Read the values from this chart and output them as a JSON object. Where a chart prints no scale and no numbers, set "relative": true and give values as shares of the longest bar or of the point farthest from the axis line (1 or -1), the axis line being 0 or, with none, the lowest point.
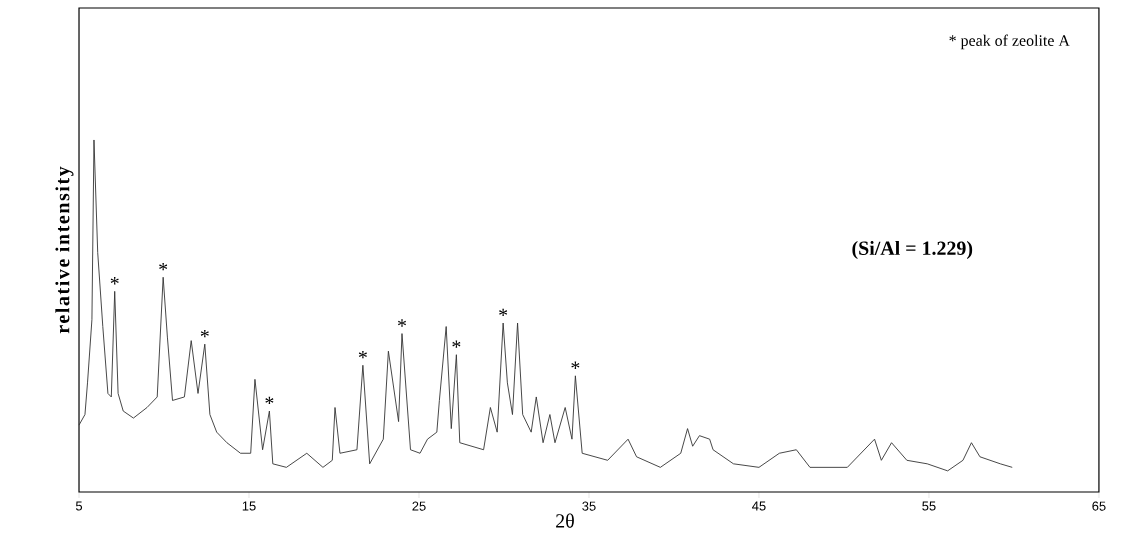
{
  "chart_data": {
    "type": "line",
    "relative": true,
    "xlabel": "2θ",
    "ylabel": "relative intensity",
    "xlim": [
      5,
      65
    ],
    "xticks": [
      5,
      15,
      25,
      35,
      45,
      55,
      65
    ],
    "grid": false,
    "marker": "none",
    "line_style": "solid",
    "annotations": [
      "* peak of zeolite A",
      "**(Si/Al = 1.229)**",
      {
        "text": "*",
        "x": 7.1,
        "y": 0.57
      },
      {
        "text": "*",
        "x": 9.95,
        "y": 0.61
      },
      {
        "text": "*",
        "x": 12.4,
        "y": 0.42
      },
      {
        "text": "*",
        "x": 16.2,
        "y": 0.23
      },
      {
        "text": "*",
        "x": 21.7,
        "y": 0.36
      },
      {
        "text": "*",
        "x": 24.0,
        "y": 0.45
      },
      {
        "text": "*",
        "x": 27.2,
        "y": 0.39
      },
      {
        "text": "*",
        "x": 29.95,
        "y": 0.48
      },
      {
        "text": "*",
        "x": 34.2,
        "y": 0.33
      }
    ],
    "series": [
      {
        "color": "#333333",
        "x": [
          5.0,
          5.35,
          5.5,
          5.76,
          5.88,
          6.1,
          6.4,
          6.7,
          6.9,
          7.1,
          7.3,
          7.6,
          8.2,
          9.0,
          9.6,
          9.95,
          10.2,
          10.5,
          11.2,
          11.6,
          12.0,
          12.4,
          12.7,
          13.1,
          13.7,
          14.5,
          15.1,
          15.35,
          15.8,
          16.2,
          16.4,
          17.2,
          18.4,
          19.35,
          19.9,
          20.06,
          20.35,
          21.35,
          21.7,
          22.1,
          22.9,
          23.2,
          23.8,
          24.0,
          24.5,
          25.06,
          25.5,
          26.05,
          26.2,
          26.6,
          26.9,
          27.2,
          27.4,
          28.8,
          29.2,
          29.6,
          29.95,
          30.2,
          30.5,
          30.8,
          31.1,
          31.6,
          31.9,
          32.3,
          32.7,
          33.0,
          33.6,
          34.0,
          34.2,
          34.6,
          36.1,
          37.3,
          37.8,
          39.2,
          40.4,
          40.8,
          41.1,
          41.5,
          42.1,
          42.3,
          43.5,
          45.0,
          46.2,
          47.2,
          48.0,
          50.2,
          51.8,
          52.2,
          52.8,
          53.7,
          54.9,
          56.1,
          57.0,
          57.5,
          58.0,
          59.2,
          59.9
        ],
        "values": [
          0.19,
          0.22,
          0.31,
          0.49,
          1.0,
          0.68,
          0.47,
          0.28,
          0.27,
          0.57,
          0.28,
          0.23,
          0.21,
          0.24,
          0.27,
          0.61,
          0.44,
          0.26,
          0.27,
          0.43,
          0.28,
          0.42,
          0.22,
          0.17,
          0.14,
          0.11,
          0.11,
          0.32,
          0.12,
          0.23,
          0.08,
          0.07,
          0.11,
          0.07,
          0.09,
          0.24,
          0.11,
          0.12,
          0.36,
          0.08,
          0.15,
          0.4,
          0.2,
          0.45,
          0.12,
          0.11,
          0.15,
          0.17,
          0.26,
          0.47,
          0.18,
          0.39,
          0.14,
          0.12,
          0.24,
          0.17,
          0.48,
          0.31,
          0.22,
          0.48,
          0.22,
          0.17,
          0.27,
          0.14,
          0.22,
          0.14,
          0.24,
          0.15,
          0.33,
          0.11,
          0.09,
          0.15,
          0.1,
          0.07,
          0.11,
          0.18,
          0.13,
          0.16,
          0.15,
          0.12,
          0.08,
          0.07,
          0.11,
          0.12,
          0.07,
          0.07,
          0.15,
          0.09,
          0.14,
          0.09,
          0.08,
          0.06,
          0.09,
          0.14,
          0.1,
          0.08,
          0.07
        ]
      }
    ]
  }
}
